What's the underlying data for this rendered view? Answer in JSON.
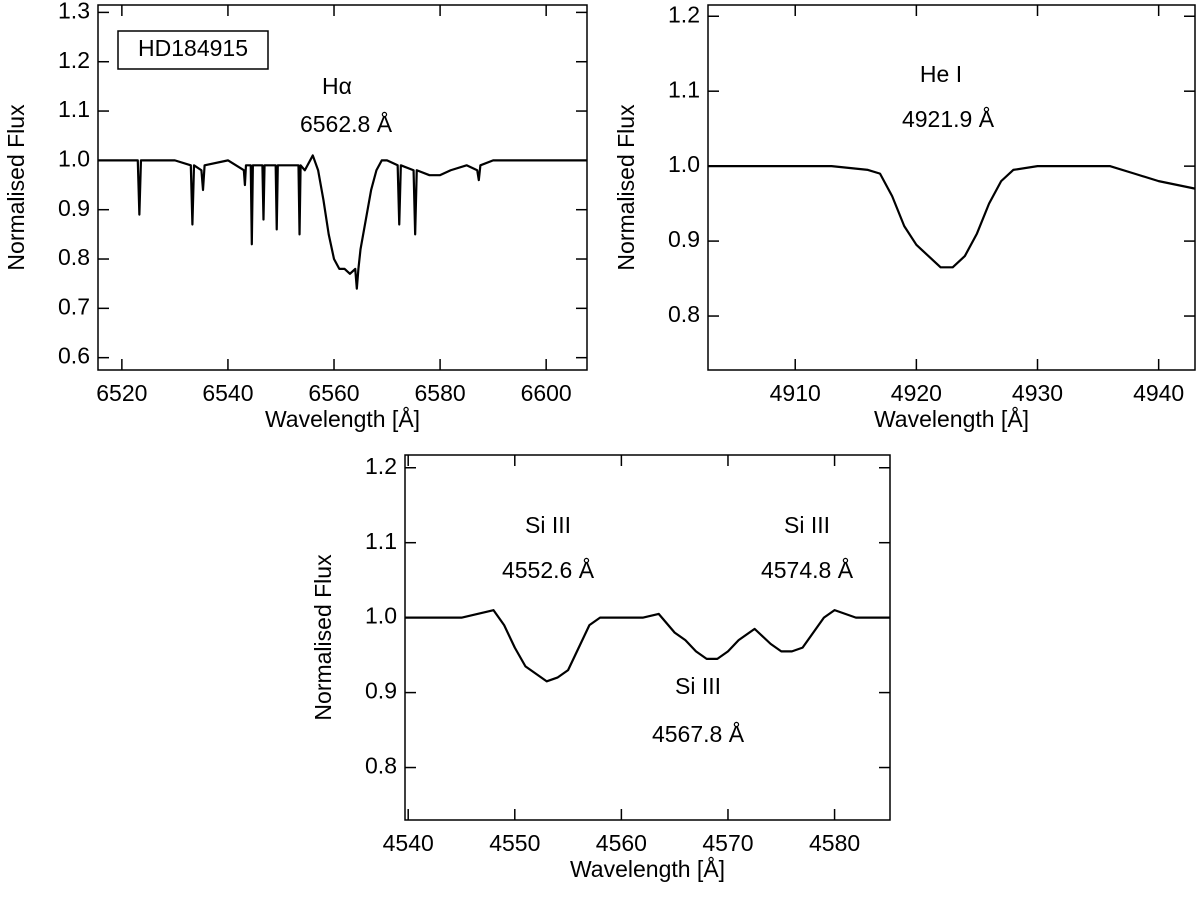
{
  "chart_data": [
    {
      "type": "line",
      "xlabel": "Wavelength [Å]",
      "ylabel": "Normalised Flux",
      "color": "#000000",
      "annotations": [
        "HD184915",
        "Hα",
        "6562.8 Å"
      ],
      "xlim": [
        6515.5,
        6607.7
      ],
      "xticks": [
        6520,
        6540,
        6560,
        6580,
        6600
      ],
      "ylim": [
        0.575,
        1.315
      ],
      "yticks": [
        0.6,
        0.7,
        0.8,
        0.9,
        {
          "value": 1,
          "label": "1.0"
        },
        1.1,
        1.2,
        1.3
      ],
      "x": [
        6515.5,
        6520,
        6523,
        6523.3,
        6523.6,
        6530,
        6533,
        6533.3,
        6533.6,
        6535,
        6535.3,
        6535.6,
        6540,
        6543,
        6543.2,
        6543.4,
        6544.3,
        6544.5,
        6544.7,
        6546.5,
        6546.7,
        6546.9,
        6549,
        6549.2,
        6549.4,
        6551,
        6553.3,
        6553.5,
        6553.7,
        6554.5,
        6556,
        6557,
        6558,
        6559,
        6560,
        6561,
        6562,
        6563,
        6564,
        6564.3,
        6564.6,
        6565,
        6566,
        6567,
        6568,
        6569,
        6570,
        6572,
        6572.3,
        6572.6,
        6575,
        6575.3,
        6575.6,
        6578,
        6580,
        6582,
        6585,
        6587,
        6587.3,
        6587.6,
        6590,
        6600,
        6607.7
      ],
      "values": [
        1.0,
        1.0,
        1.0,
        0.89,
        1.0,
        1.0,
        0.99,
        0.87,
        0.99,
        0.98,
        0.94,
        0.99,
        1.0,
        0.98,
        0.95,
        0.99,
        0.99,
        0.83,
        0.99,
        0.99,
        0.88,
        0.99,
        0.99,
        0.86,
        0.99,
        0.99,
        0.99,
        0.85,
        0.99,
        0.98,
        1.01,
        0.98,
        0.92,
        0.85,
        0.8,
        0.78,
        0.78,
        0.77,
        0.78,
        0.74,
        0.78,
        0.82,
        0.88,
        0.94,
        0.98,
        1.0,
        1.0,
        0.99,
        0.87,
        0.99,
        0.98,
        0.85,
        0.98,
        0.97,
        0.97,
        0.98,
        0.99,
        0.98,
        0.96,
        0.99,
        1.0,
        1.0,
        1.0
      ]
    },
    {
      "type": "line",
      "xlabel": "Wavelength [Å]",
      "ylabel": "Normalised Flux",
      "color": "#000000",
      "annotations": [
        "He I",
        "4921.9 Å"
      ],
      "xlim": [
        4902.8,
        4943
      ],
      "xticks": [
        4910,
        4920,
        4930,
        4940
      ],
      "ylim": [
        0.728,
        1.215
      ],
      "yticks": [
        0.8,
        0.9,
        {
          "value": 1,
          "label": "1.0"
        },
        1.1,
        1.2
      ],
      "x": [
        4902.8,
        4906,
        4910,
        4913,
        4916,
        4917,
        4918,
        4919,
        4920,
        4921,
        4922,
        4923,
        4924,
        4925,
        4926,
        4927,
        4928,
        4930,
        4933,
        4936,
        4938,
        4940,
        4943
      ],
      "values": [
        1.0,
        1.0,
        1.0,
        1.0,
        0.995,
        0.99,
        0.96,
        0.92,
        0.895,
        0.88,
        0.865,
        0.865,
        0.88,
        0.91,
        0.95,
        0.98,
        0.995,
        1.0,
        1.0,
        1.0,
        0.99,
        0.98,
        0.97
      ]
    },
    {
      "type": "line",
      "xlabel": "Wavelength [Å]",
      "ylabel": "Normalised Flux",
      "color": "#000000",
      "annotations": [
        "Si III",
        "4552.6 Å",
        "Si III",
        "4574.8 Å",
        "Si III",
        "4567.8 Å"
      ],
      "xlim": [
        4539.7,
        4585.2
      ],
      "xticks": [
        4540,
        4550,
        4560,
        4570,
        4580
      ],
      "ylim": [
        0.73,
        1.217
      ],
      "yticks": [
        0.8,
        0.9,
        {
          "value": 1,
          "label": "1.0"
        },
        1.1,
        1.2
      ],
      "x": [
        4539.7,
        4542,
        4545,
        4548,
        4549,
        4550,
        4551,
        4552,
        4553,
        4554,
        4555,
        4556,
        4557,
        4558,
        4560,
        4562,
        4563.5,
        4565,
        4566,
        4567,
        4568,
        4569,
        4570,
        4571,
        4572.5,
        4574,
        4575,
        4576,
        4577,
        4578,
        4579,
        4580,
        4582,
        4585.2
      ],
      "values": [
        1.0,
        1.0,
        1.0,
        1.01,
        0.99,
        0.96,
        0.935,
        0.925,
        0.915,
        0.92,
        0.93,
        0.96,
        0.99,
        1.0,
        1.0,
        1.0,
        1.005,
        0.98,
        0.97,
        0.955,
        0.945,
        0.945,
        0.955,
        0.97,
        0.985,
        0.965,
        0.955,
        0.955,
        0.96,
        0.98,
        1.0,
        1.01,
        1.0,
        1.0
      ]
    }
  ]
}
